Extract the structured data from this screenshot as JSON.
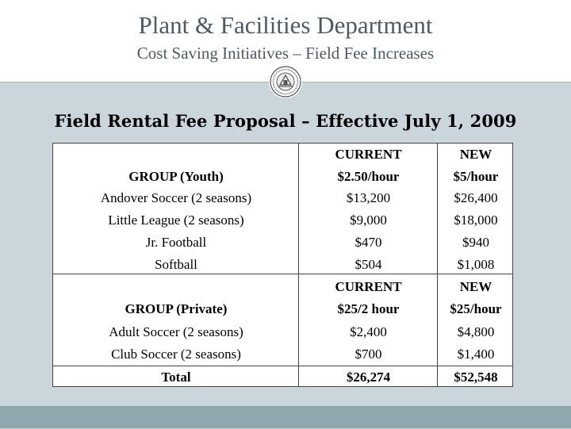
{
  "header": {
    "title": "Plant & Facilities Department",
    "subtitle": "Cost Saving Initiatives – Field Fee Increases"
  },
  "logo": "town-seal-icon",
  "heading": "Field Rental Fee Proposal – Effective July 1, 2009",
  "table": {
    "rows": [
      {
        "group": "",
        "current": "CURRENT",
        "new": "NEW",
        "bold": true
      },
      {
        "group": "GROUP (Youth)",
        "current": "$2.50/hour",
        "new": "$5/hour",
        "bold": true
      },
      {
        "group": "Andover Soccer (2 seasons)",
        "current": "$13,200",
        "new": "$26,400",
        "bold": false
      },
      {
        "group": "Little League (2 seasons)",
        "current": "$9,000",
        "new": "$18,000",
        "bold": false
      },
      {
        "group": "Jr. Football",
        "current": "$470",
        "new": "$940",
        "bold": false
      },
      {
        "group": "Softball",
        "current": "$504",
        "new": "$1,008",
        "bold": false
      },
      {
        "group": "",
        "current": "CURRENT",
        "new": "NEW",
        "bold": true
      },
      {
        "group": "GROUP (Private)",
        "current": "$25/2 hour",
        "new": "$25/hour",
        "bold": true
      },
      {
        "group": "Adult Soccer (2 seasons)",
        "current": "$2,400",
        "new": "$4,800",
        "bold": false
      },
      {
        "group": "Club Soccer (2 seasons)",
        "current": "$700",
        "new": "$1,400",
        "bold": false
      },
      {
        "group": "Total",
        "current": "$26,274",
        "new": "$52,548",
        "bold": true
      }
    ]
  },
  "colors": {
    "title": "#4a5a66",
    "body_background": "#cbd5dc",
    "footer_bar": "#8fa8ae"
  }
}
